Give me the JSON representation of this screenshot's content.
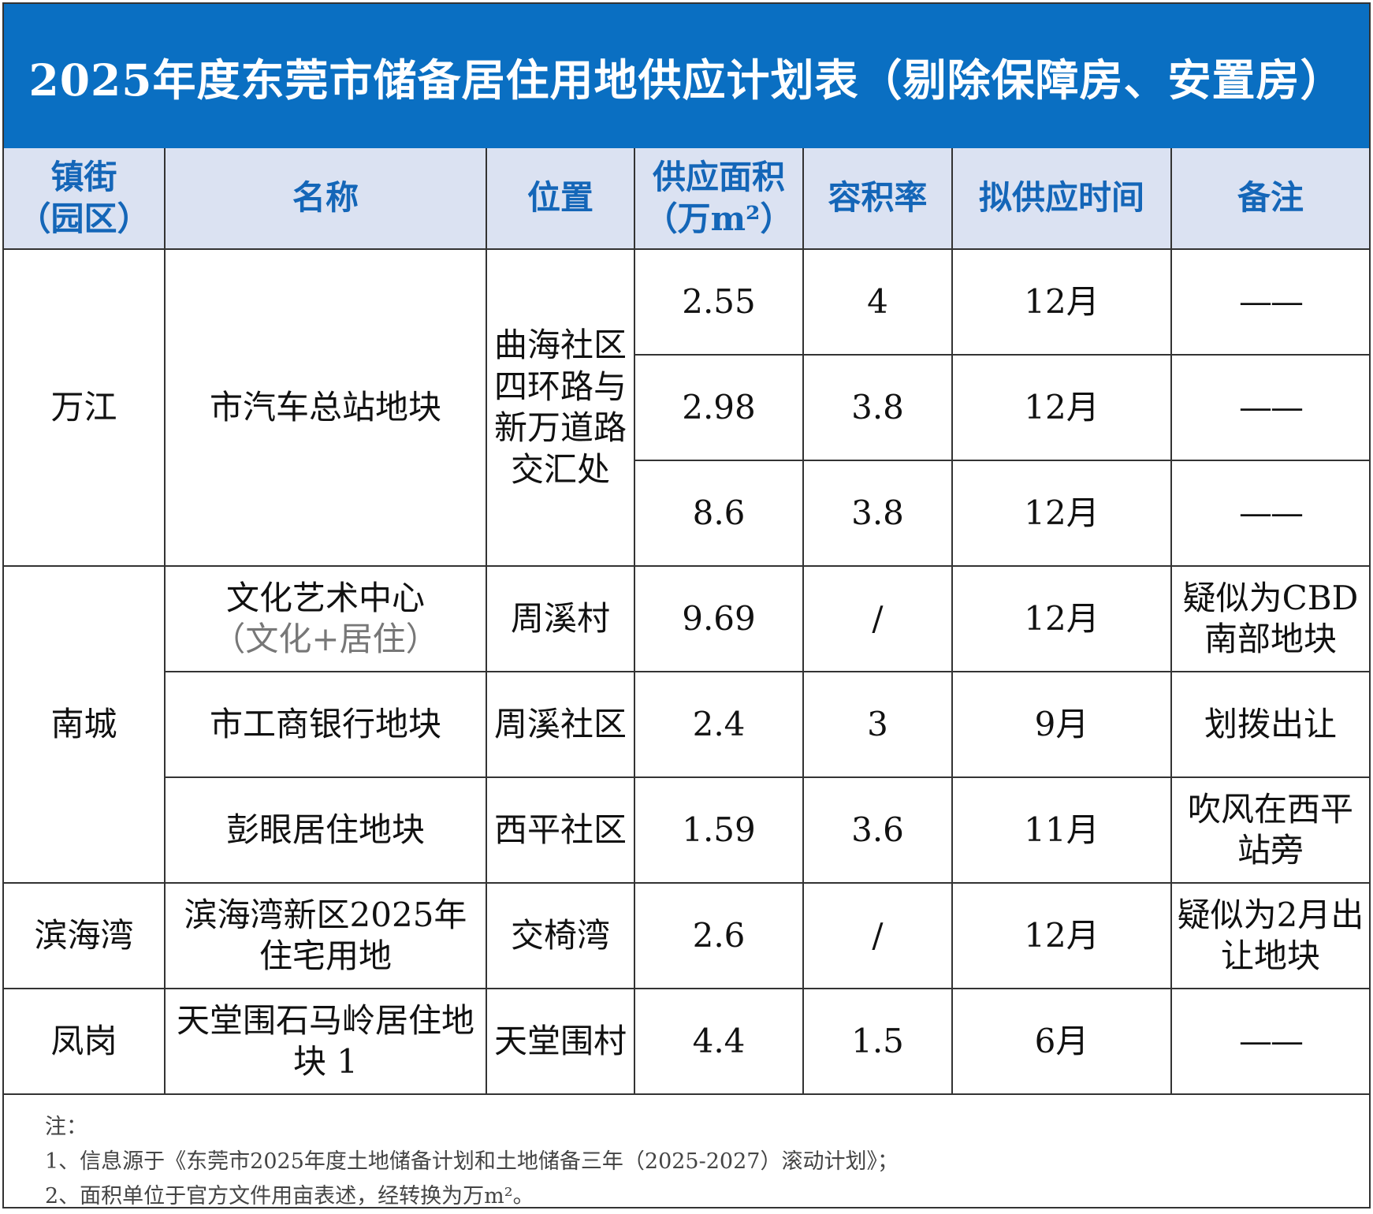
{
  "title": "2025年度东莞市储备居住用地供应计划表（剔除保障房、安置房）",
  "headers": {
    "town_line1": "镇街",
    "town_line2": "（园区）",
    "name": "名称",
    "location": "位置",
    "area_line1": "供应面积",
    "area_line2": "（万m²）",
    "far": "容积率",
    "time": "拟供应时间",
    "remark": "备注"
  },
  "groups": [
    {
      "town": "万江",
      "name": "市汽车总站地块",
      "location": "曲海社区四环路与新万道路交汇处",
      "rows": [
        {
          "area": "2.55",
          "far": "4",
          "time": "12月",
          "remark": "——"
        },
        {
          "area": "2.98",
          "far": "3.8",
          "time": "12月",
          "remark": "——"
        },
        {
          "area": "8.6",
          "far": "3.8",
          "time": "12月",
          "remark": "——"
        }
      ]
    },
    {
      "town": "南城",
      "rows": [
        {
          "name": "文化艺术中心",
          "name_sub": "（文化+居住）",
          "location": "周溪村",
          "area": "9.69",
          "far": "/",
          "time": "12月",
          "remark": "疑似为CBD南部地块"
        },
        {
          "name": "市工商银行地块",
          "location": "周溪社区",
          "area": "2.4",
          "far": "3",
          "time": "9月",
          "remark": "划拨出让"
        },
        {
          "name": "彭眼居住地块",
          "location": "西平社区",
          "area": "1.59",
          "far": "3.6",
          "time": "11月",
          "remark": "吹风在西平站旁"
        }
      ]
    },
    {
      "town": "滨海湾",
      "rows": [
        {
          "name": "滨海湾新区2025年住宅用地",
          "location": "交椅湾",
          "area": "2.6",
          "far": "/",
          "time": "12月",
          "remark": "疑似为2月出让地块"
        }
      ]
    },
    {
      "town": "凤岗",
      "rows": [
        {
          "name": "天堂围石马岭居住地块 1",
          "location": "天堂围村",
          "area": "4.4",
          "far": "1.5",
          "time": "6月",
          "remark": "——"
        }
      ]
    }
  ],
  "notes": {
    "label": "注：",
    "line1": "1、信息源于《东莞市2025年度土地储备计划和土地储备三年（2025-2027）滚动计划》；",
    "line2": "2、面积单位于官方文件用亩表述，经转换为万m²。"
  }
}
